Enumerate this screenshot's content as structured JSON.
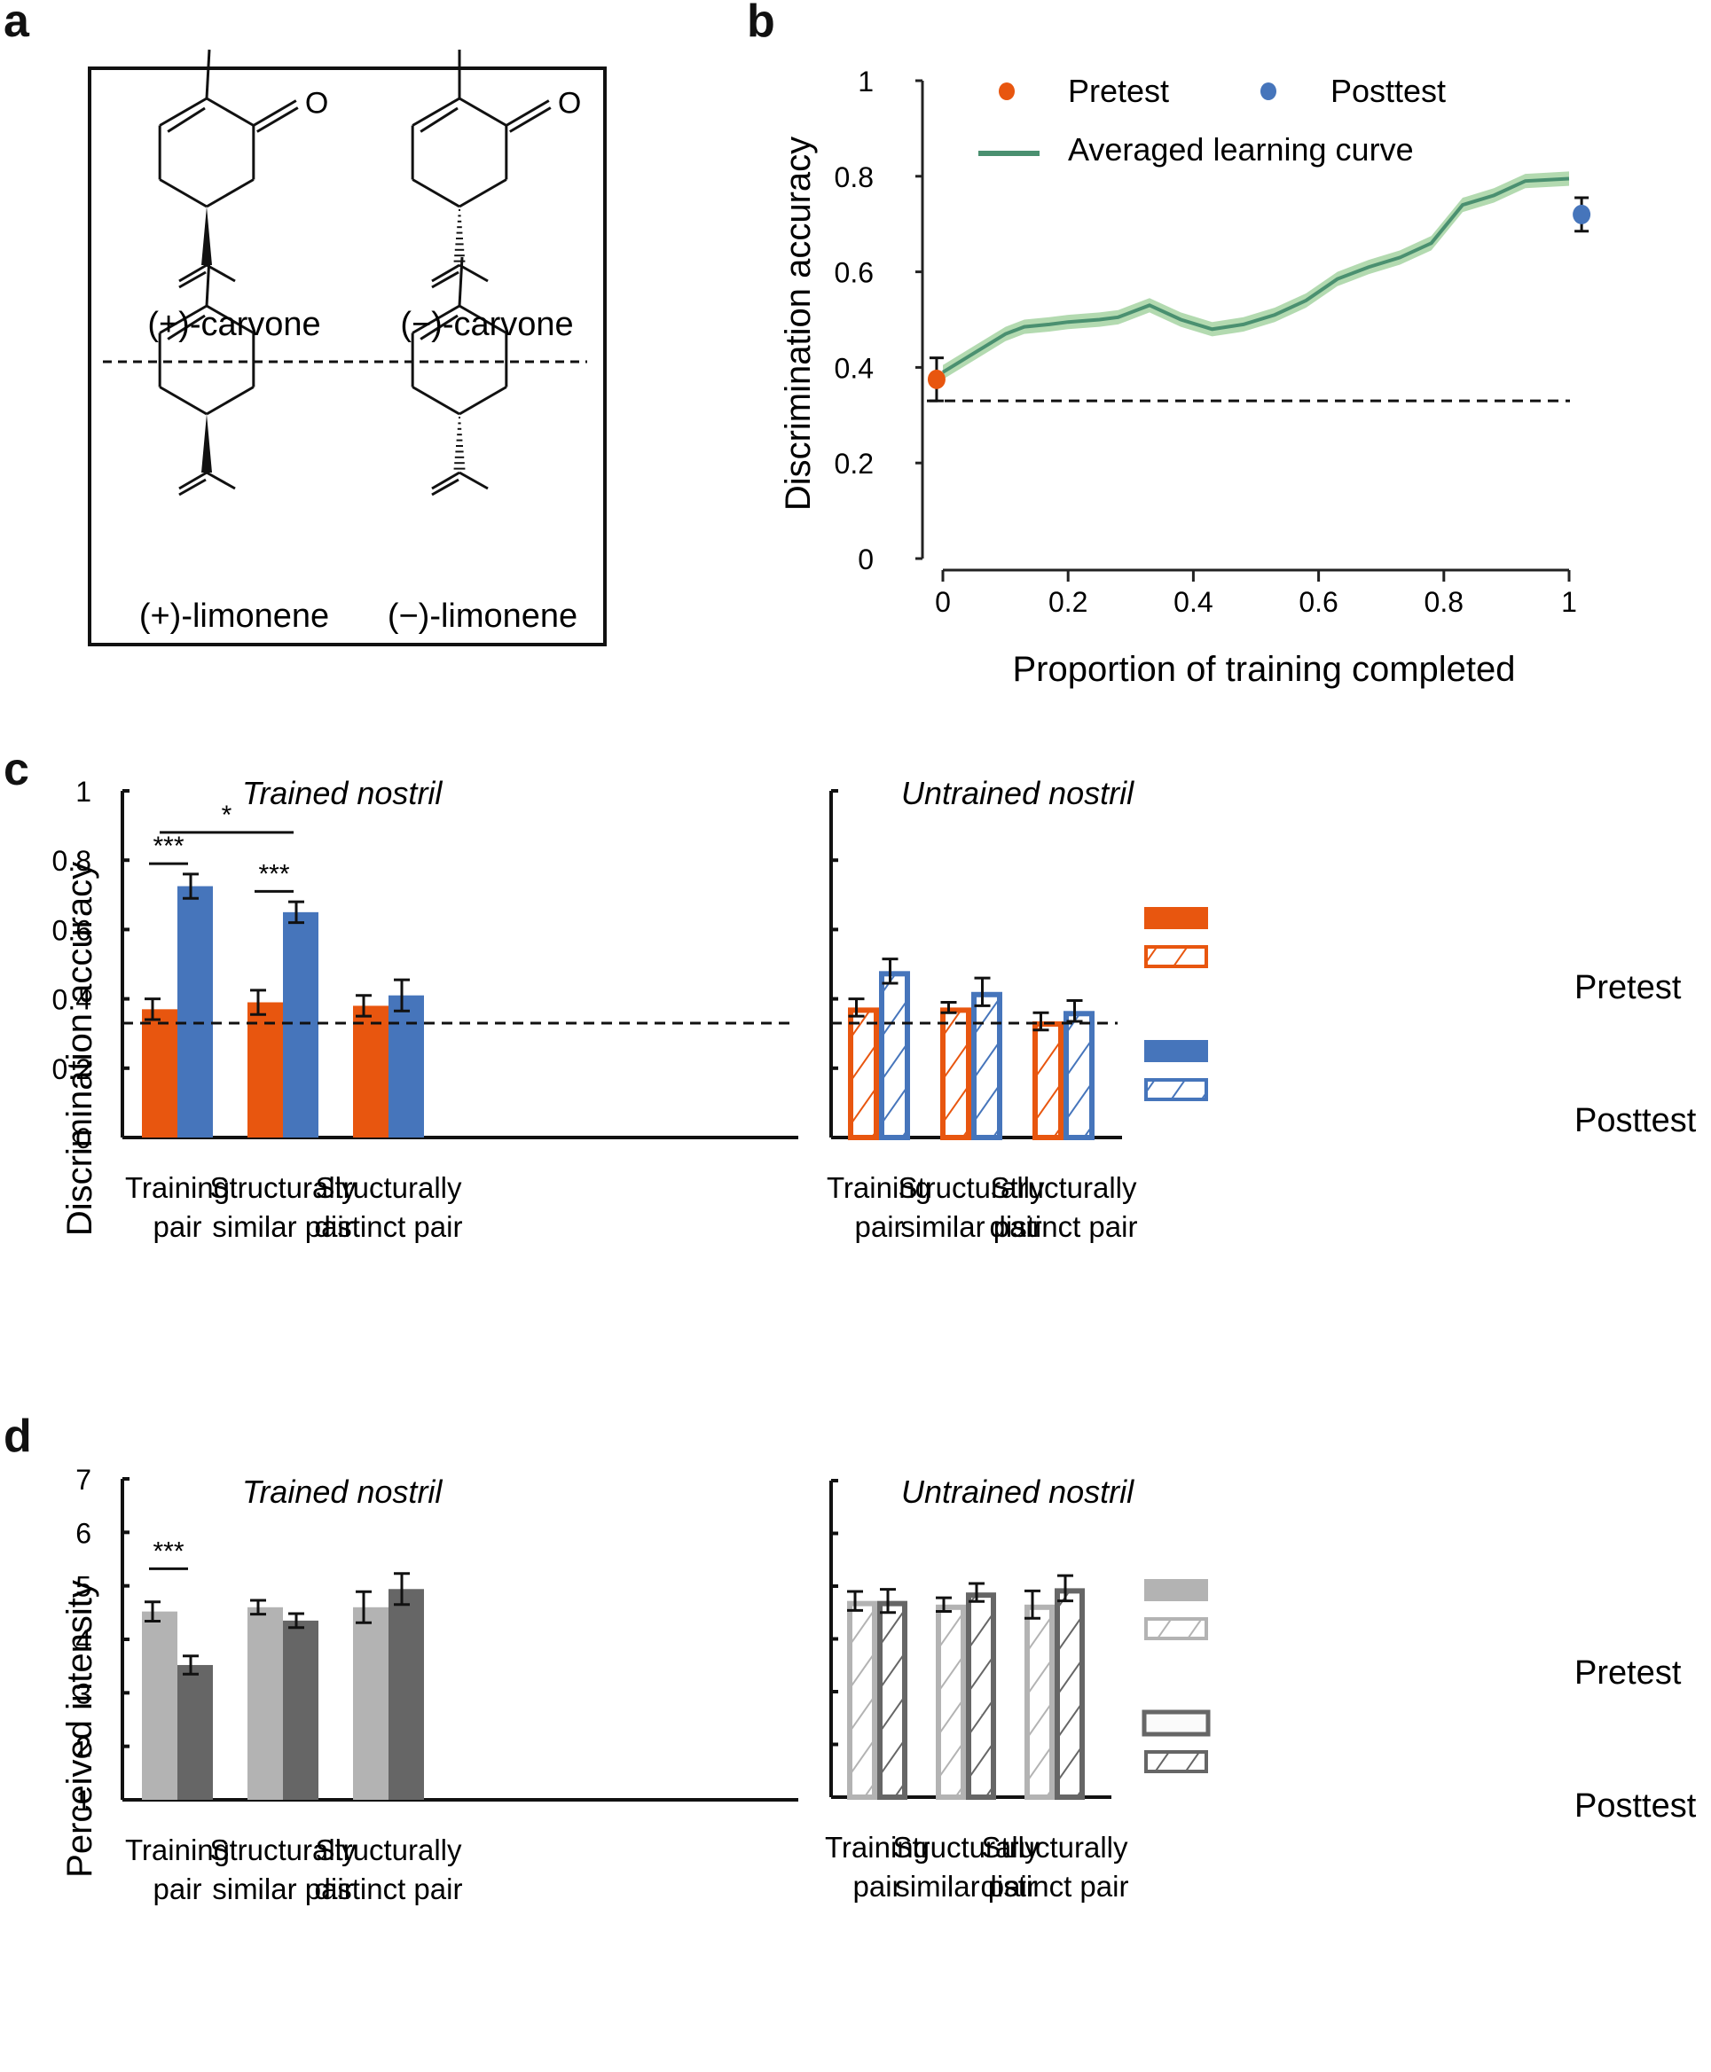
{
  "panel_letters": {
    "a": "a",
    "b": "b",
    "c": "c",
    "d": "d"
  },
  "colors": {
    "pretest": "#e8560f",
    "posttest": "#4675bb",
    "curve": "#4a9070",
    "curve_band": "#a6d3a2",
    "gray_light": "#b3b3b3",
    "gray_dark": "#666666"
  },
  "panel_a": {
    "molecules": [
      {
        "name": "(+)-carvone",
        "type": "carvone",
        "stereo": "wedge"
      },
      {
        "name": "(−)-carvone",
        "type": "carvone",
        "stereo": "hash"
      },
      {
        "name": "(+)-limonene",
        "type": "limonene",
        "stereo": "wedge"
      },
      {
        "name": "(−)-limonene",
        "type": "limonene",
        "stereo": "hash"
      }
    ],
    "oxygen_label": "O"
  },
  "chart_data": [
    {
      "id": "b",
      "type": "line",
      "title": "",
      "xlabel": "Proportion of training completed",
      "ylabel": "Discrimination accuracy",
      "xlim": [
        0,
        1
      ],
      "ylim": [
        0,
        1
      ],
      "xticks": [
        "0",
        "0.2",
        "0.4",
        "0.6",
        "0.8",
        "1"
      ],
      "yticks": [
        "0",
        "0.2",
        "0.4",
        "0.6",
        "0.8",
        "1"
      ],
      "chance_level": 0.33,
      "legend": [
        {
          "label": "Pretest",
          "kind": "dot",
          "color": "#e8560f"
        },
        {
          "label": "Posttest",
          "kind": "dot",
          "color": "#4675bb"
        },
        {
          "label": "Averaged learning curve",
          "kind": "line",
          "color": "#4a9070"
        }
      ],
      "legend_position": "top",
      "curve": {
        "x": [
          0,
          0.05,
          0.1,
          0.13,
          0.17,
          0.2,
          0.25,
          0.28,
          0.33,
          0.38,
          0.43,
          0.48,
          0.53,
          0.58,
          0.63,
          0.68,
          0.73,
          0.78,
          0.83,
          0.88,
          0.93,
          1.0
        ],
        "y": [
          0.39,
          0.43,
          0.47,
          0.485,
          0.49,
          0.495,
          0.5,
          0.505,
          0.53,
          0.5,
          0.48,
          0.49,
          0.51,
          0.54,
          0.585,
          0.61,
          0.63,
          0.66,
          0.74,
          0.76,
          0.79,
          0.795
        ],
        "band": 0.015
      },
      "pretest": {
        "x": -0.01,
        "y": 0.375,
        "err": 0.045
      },
      "posttest": {
        "x": 1.02,
        "y": 0.72,
        "err": 0.035
      }
    },
    {
      "id": "c",
      "type": "bar",
      "ylabel": "Discrimination accuracy",
      "ylim": [
        0,
        1
      ],
      "yticks": [
        "0",
        "0.2",
        "0.4",
        "0.6",
        "0.8",
        "1"
      ],
      "chance_level": 0.33,
      "categories": [
        [
          "Training",
          "pair"
        ],
        [
          "Structurally",
          "similar pair"
        ],
        [
          "Structurally",
          "distinct pair"
        ]
      ],
      "subplots": [
        {
          "title": "Trained nostril",
          "style": "solid",
          "series": [
            {
              "name": "Pretest",
              "values": [
                0.37,
                0.39,
                0.38
              ],
              "errors": [
                0.03,
                0.035,
                0.03
              ]
            },
            {
              "name": "Posttest",
              "values": [
                0.725,
                0.65,
                0.41
              ],
              "errors": [
                0.035,
                0.03,
                0.045
              ]
            }
          ],
          "annotations": [
            {
              "label": "***",
              "from": [
                0,
                0
              ],
              "to": [
                0,
                1
              ],
              "level": 0.79
            },
            {
              "label": "***",
              "from": [
                1,
                0
              ],
              "to": [
                1,
                1
              ],
              "level": 0.71
            },
            {
              "label": "*",
              "from": [
                0,
                1
              ],
              "to": [
                1,
                1
              ],
              "level": 0.88
            }
          ]
        },
        {
          "title": "Untrained nostril",
          "style": "hatched",
          "series": [
            {
              "name": "Pretest",
              "values": [
                0.375,
                0.375,
                0.335
              ],
              "errors": [
                0.025,
                0.015,
                0.025
              ]
            },
            {
              "name": "Posttest",
              "values": [
                0.48,
                0.42,
                0.365
              ],
              "errors": [
                0.035,
                0.04,
                0.03
              ]
            }
          ],
          "annotations": []
        }
      ],
      "legend": [
        {
          "label": "Pretest",
          "colors": [
            "#e8560f",
            "#e8560f"
          ]
        },
        {
          "label": "Posttest",
          "colors": [
            "#4675bb",
            "#4675bb"
          ]
        }
      ],
      "legend_position": "right"
    },
    {
      "id": "d",
      "type": "bar",
      "ylabel": "Perceived intensity",
      "ylim": [
        1,
        7
      ],
      "yticks": [
        "1",
        "2",
        "3",
        "4",
        "5",
        "6",
        "7"
      ],
      "categories": [
        [
          "Training",
          "pair"
        ],
        [
          "Structurally",
          "similar pair"
        ],
        [
          "Structurally",
          "distinct pair"
        ]
      ],
      "subplots": [
        {
          "title": "Trained nostril",
          "style": "solid",
          "series": [
            {
              "name": "Pretest",
              "values": [
                4.52,
                4.6,
                4.6
              ],
              "errors": [
                0.18,
                0.13,
                0.29
              ]
            },
            {
              "name": "Posttest",
              "values": [
                3.52,
                4.35,
                4.94
              ],
              "errors": [
                0.17,
                0.13,
                0.29
              ]
            }
          ],
          "annotations": [
            {
              "label": "***",
              "from": [
                0,
                0
              ],
              "to": [
                0,
                1
              ],
              "level": 5.32
            }
          ]
        },
        {
          "title": "Untrained nostril",
          "style": "hatched",
          "series": [
            {
              "name": "Pretest",
              "values": [
                4.72,
                4.65,
                4.65
              ],
              "errors": [
                0.18,
                0.13,
                0.26
              ]
            },
            {
              "name": "Posttest",
              "values": [
                4.72,
                4.88,
                4.96
              ],
              "errors": [
                0.22,
                0.17,
                0.24
              ]
            }
          ],
          "annotations": []
        }
      ],
      "legend": [
        {
          "label": "Pretest",
          "colors": [
            "#b3b3b3",
            "#b3b3b3"
          ]
        },
        {
          "label": "Posttest",
          "colors": [
            "#666666",
            "#666666"
          ]
        }
      ],
      "legend_position": "right"
    }
  ]
}
